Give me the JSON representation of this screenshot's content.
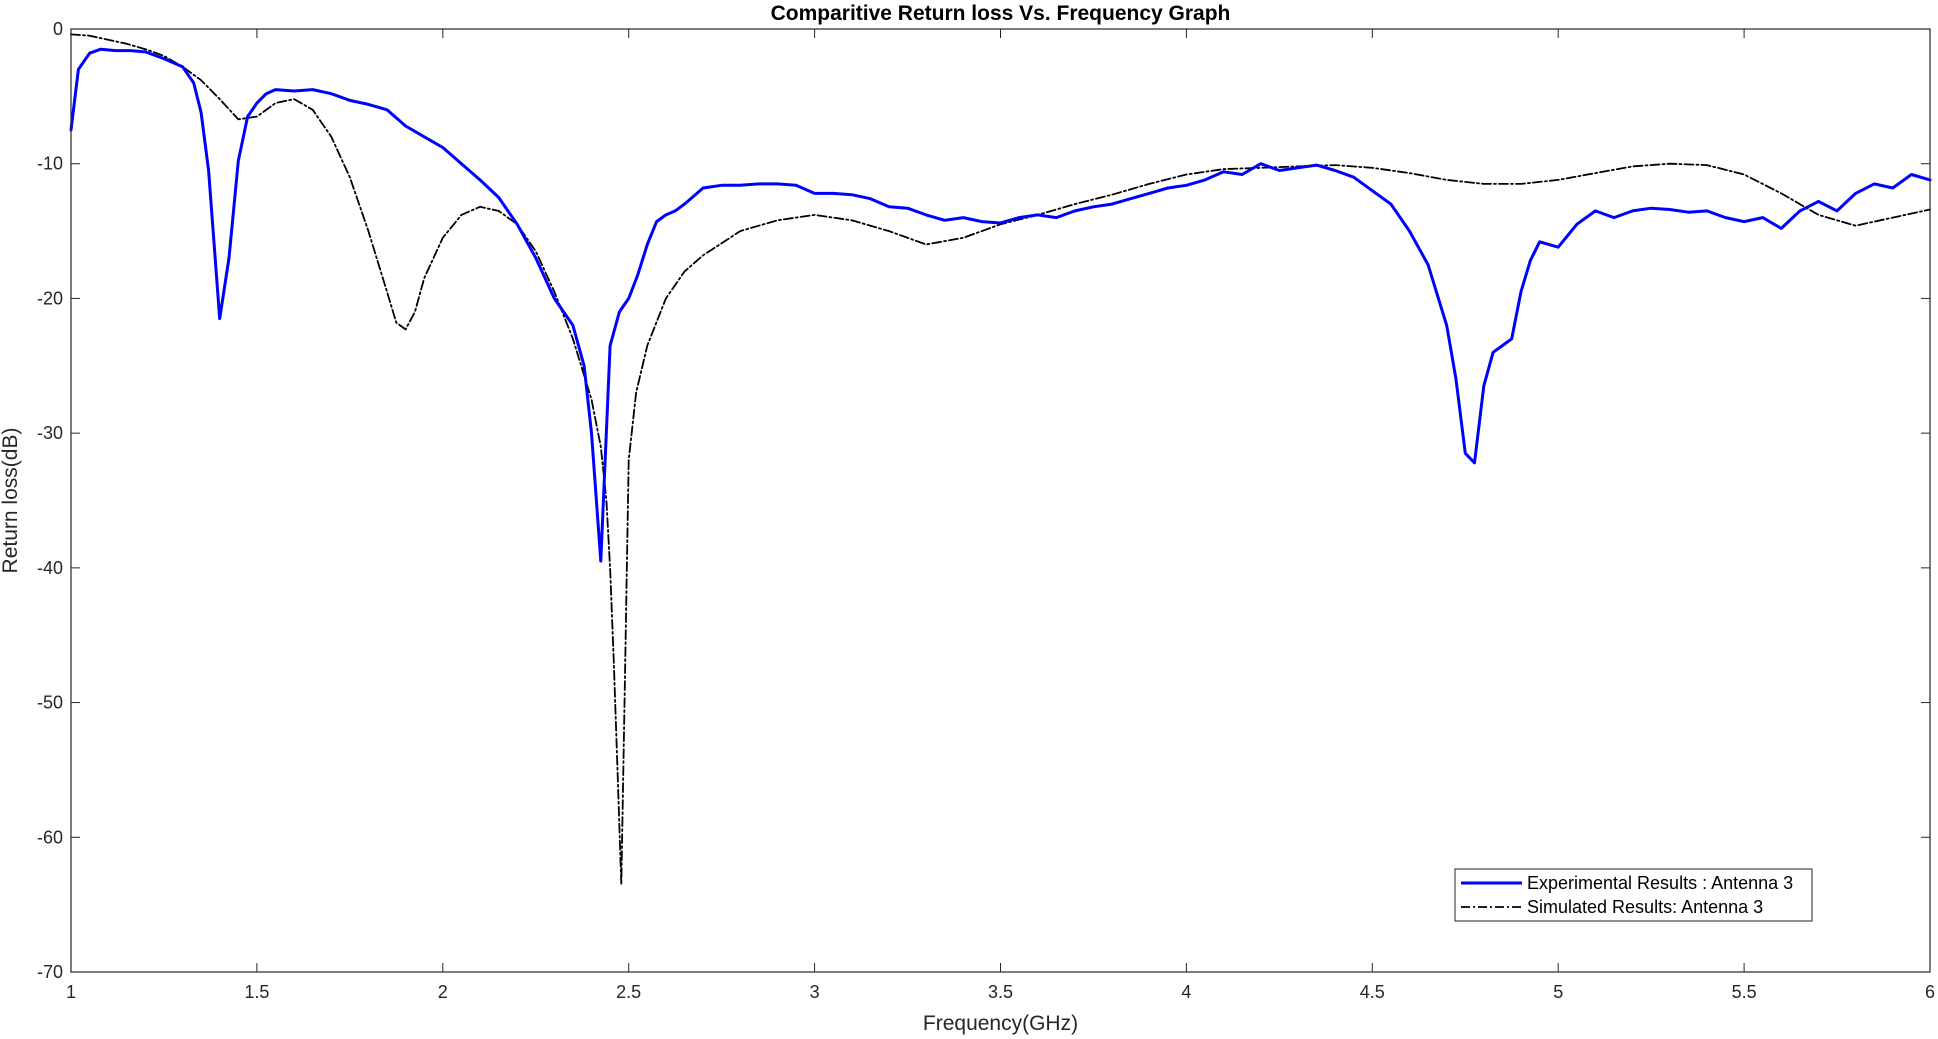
{
  "chart_data": {
    "type": "line",
    "title": "Comparitive Return loss Vs. Frequency Graph",
    "xlabel": "Frequency(GHz)",
    "ylabel": "Return loss(dB)",
    "xlim": [
      1,
      6
    ],
    "ylim": [
      -70,
      0
    ],
    "xticks": [
      1,
      1.5,
      2,
      2.5,
      3,
      3.5,
      4,
      4.5,
      5,
      5.5,
      6
    ],
    "xtick_labels": [
      "1",
      "1.5",
      "2",
      "2.5",
      "3",
      "3.5",
      "4",
      "4.5",
      "5",
      "5.5",
      "6"
    ],
    "yticks": [
      0,
      -10,
      -20,
      -30,
      -40,
      -50,
      -60,
      -70
    ],
    "ytick_labels": [
      "0",
      "-10",
      "-20",
      "-30",
      "-40",
      "-50",
      "-60",
      "-70"
    ],
    "grid": false,
    "legend_position": "bottom-right",
    "series": [
      {
        "name": "Experimental Results : Antenna 3",
        "color": "#0000ff",
        "style": "solid",
        "x": [
          1.0,
          1.02,
          1.05,
          1.08,
          1.12,
          1.16,
          1.2,
          1.25,
          1.3,
          1.33,
          1.35,
          1.37,
          1.4,
          1.425,
          1.45,
          1.475,
          1.5,
          1.525,
          1.55,
          1.6,
          1.65,
          1.7,
          1.75,
          1.8,
          1.85,
          1.9,
          1.95,
          2.0,
          2.05,
          2.1,
          2.15,
          2.2,
          2.25,
          2.3,
          2.35,
          2.38,
          2.4,
          2.425,
          2.45,
          2.475,
          2.5,
          2.525,
          2.55,
          2.575,
          2.6,
          2.625,
          2.65,
          2.7,
          2.75,
          2.8,
          2.85,
          2.9,
          2.95,
          3.0,
          3.05,
          3.1,
          3.15,
          3.2,
          3.25,
          3.3,
          3.35,
          3.4,
          3.45,
          3.5,
          3.55,
          3.6,
          3.65,
          3.7,
          3.75,
          3.8,
          3.85,
          3.9,
          3.95,
          4.0,
          4.05,
          4.1,
          4.15,
          4.2,
          4.25,
          4.3,
          4.35,
          4.4,
          4.45,
          4.5,
          4.55,
          4.6,
          4.65,
          4.7,
          4.725,
          4.75,
          4.775,
          4.8,
          4.825,
          4.85,
          4.875,
          4.9,
          4.925,
          4.95,
          5.0,
          5.05,
          5.1,
          5.15,
          5.2,
          5.25,
          5.3,
          5.35,
          5.4,
          5.45,
          5.5,
          5.55,
          5.6,
          5.65,
          5.7,
          5.75,
          5.8,
          5.85,
          5.9,
          5.95,
          6.0
        ],
        "y": [
          -7.5,
          -3.0,
          -1.8,
          -1.5,
          -1.6,
          -1.6,
          -1.7,
          -2.2,
          -2.8,
          -4.0,
          -6.2,
          -10.5,
          -21.5,
          -17.0,
          -9.8,
          -6.5,
          -5.5,
          -4.8,
          -4.5,
          -4.6,
          -4.5,
          -4.8,
          -5.3,
          -5.6,
          -6.0,
          -7.2,
          -8.0,
          -8.8,
          -10.0,
          -11.2,
          -12.5,
          -14.5,
          -17.0,
          -20.0,
          -22.0,
          -25.0,
          -30.0,
          -39.5,
          -23.5,
          -21.0,
          -20.0,
          -18.2,
          -16.0,
          -14.3,
          -13.8,
          -13.5,
          -13.0,
          -11.8,
          -11.6,
          -11.6,
          -11.5,
          -11.5,
          -11.6,
          -12.2,
          -12.2,
          -12.3,
          -12.6,
          -13.2,
          -13.3,
          -13.8,
          -14.2,
          -14.0,
          -14.3,
          -14.4,
          -14.0,
          -13.8,
          -14.0,
          -13.5,
          -13.2,
          -13.0,
          -12.6,
          -12.2,
          -11.8,
          -11.6,
          -11.2,
          -10.6,
          -10.8,
          -10.0,
          -10.5,
          -10.3,
          -10.1,
          -10.5,
          -11.0,
          -12.0,
          -13.0,
          -15.0,
          -17.5,
          -22.0,
          -26.0,
          -31.5,
          -32.2,
          -26.5,
          -24.0,
          -23.5,
          -23.0,
          -19.5,
          -17.2,
          -15.8,
          -16.2,
          -14.5,
          -13.5,
          -14.0,
          -13.5,
          -13.3,
          -13.4,
          -13.6,
          -13.5,
          -14.0,
          -14.3,
          -14.0,
          -14.8,
          -13.5,
          -12.8,
          -13.5,
          -12.2,
          -11.5,
          -11.8,
          -10.8,
          -11.2
        ]
      },
      {
        "name": "Simulated Results: Antenna 3",
        "color": "#000000",
        "style": "dash-dot",
        "x": [
          1.0,
          1.05,
          1.1,
          1.15,
          1.2,
          1.25,
          1.3,
          1.35,
          1.4,
          1.45,
          1.5,
          1.55,
          1.6,
          1.65,
          1.7,
          1.75,
          1.8,
          1.85,
          1.875,
          1.9,
          1.925,
          1.95,
          2.0,
          2.05,
          2.1,
          2.15,
          2.2,
          2.25,
          2.3,
          2.35,
          2.4,
          2.425,
          2.44,
          2.45,
          2.46,
          2.47,
          2.48,
          2.49,
          2.5,
          2.52,
          2.55,
          2.6,
          2.65,
          2.7,
          2.8,
          2.9,
          3.0,
          3.1,
          3.2,
          3.3,
          3.4,
          3.5,
          3.6,
          3.7,
          3.8,
          3.9,
          4.0,
          4.1,
          4.2,
          4.3,
          4.4,
          4.5,
          4.6,
          4.7,
          4.8,
          4.9,
          5.0,
          5.1,
          5.2,
          5.3,
          5.4,
          5.5,
          5.6,
          5.7,
          5.8,
          5.9,
          6.0
        ],
        "y": [
          -0.4,
          -0.5,
          -0.8,
          -1.1,
          -1.5,
          -2.0,
          -2.8,
          -3.8,
          -5.2,
          -6.7,
          -6.5,
          -5.5,
          -5.2,
          -6.0,
          -8.0,
          -11.0,
          -15.0,
          -19.5,
          -21.8,
          -22.3,
          -21.0,
          -18.5,
          -15.5,
          -13.8,
          -13.2,
          -13.5,
          -14.5,
          -16.5,
          -19.5,
          -23.0,
          -27.5,
          -31.0,
          -35.0,
          -40.0,
          -47.0,
          -55.0,
          -63.5,
          -48.0,
          -32.0,
          -27.0,
          -23.5,
          -20.0,
          -18.0,
          -16.8,
          -15.0,
          -14.2,
          -13.8,
          -14.2,
          -15.0,
          -16.0,
          -15.5,
          -14.5,
          -13.8,
          -13.0,
          -12.3,
          -11.5,
          -10.8,
          -10.4,
          -10.3,
          -10.2,
          -10.1,
          -10.3,
          -10.7,
          -11.2,
          -11.5,
          -11.5,
          -11.2,
          -10.7,
          -10.2,
          -10.0,
          -10.1,
          -10.8,
          -12.2,
          -13.8,
          -14.6,
          -14.0,
          -13.4
        ]
      }
    ]
  }
}
